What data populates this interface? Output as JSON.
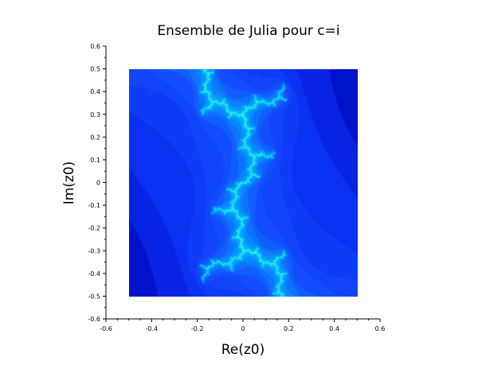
{
  "chart_data": {
    "type": "heatmap",
    "title": "Ensemble de Julia pour c=i",
    "xlabel": "Re(z0)",
    "ylabel": "Im(z0)",
    "xlim": [
      -0.6,
      0.6
    ],
    "ylim": [
      -0.6,
      0.6
    ],
    "x_ticks": [
      "-0.6",
      "-0.4",
      "-0.2",
      "0",
      "0.2",
      "0.4",
      "0.6"
    ],
    "y_ticks": [
      "-0.6",
      "-0.5",
      "-0.4",
      "-0.3",
      "-0.2",
      "-0.1",
      "0",
      "0.1",
      "0.2",
      "0.3",
      "0.4",
      "0.5",
      "0.6"
    ],
    "data_extent": {
      "re": [
        -0.5,
        0.5
      ],
      "im": [
        -0.5,
        0.5
      ]
    },
    "parameter_c": {
      "re": 0,
      "im": 1
    },
    "max_iterations": 40,
    "escape_radius": 2,
    "colormap": [
      "#00004a",
      "#00007a",
      "#0010c8",
      "#0a30f0",
      "#1450ff",
      "#00b4ff",
      "#40ffd8",
      "#a0fff0"
    ],
    "grid": false,
    "legend": "none"
  }
}
